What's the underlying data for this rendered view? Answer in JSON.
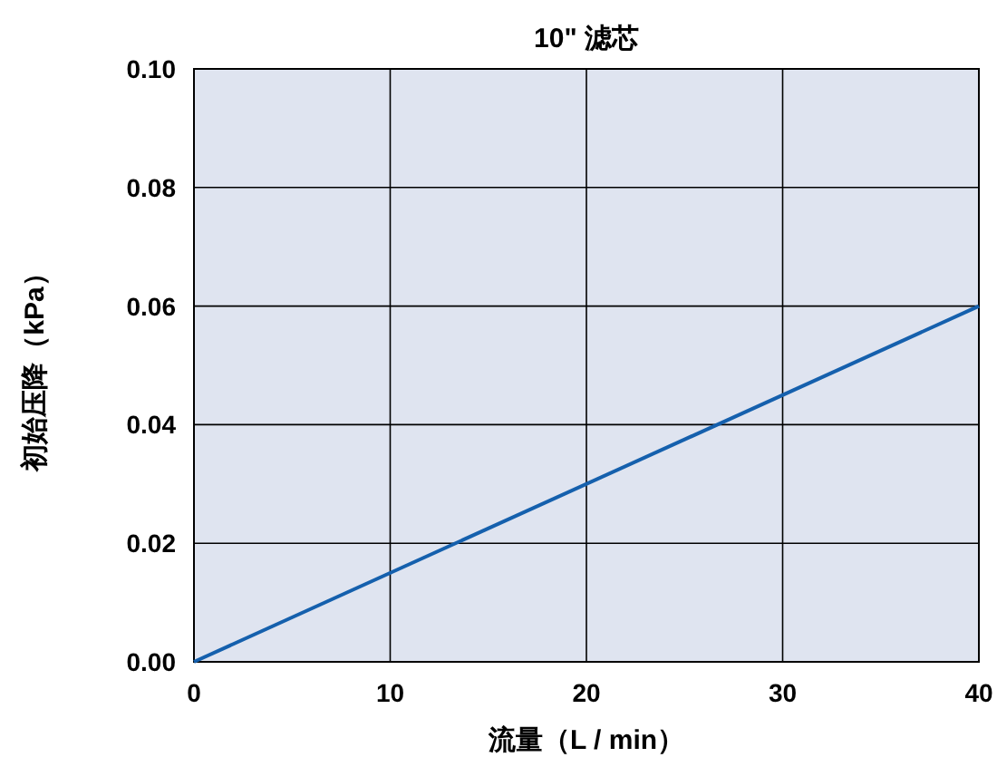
{
  "chart_data": {
    "type": "line",
    "title": "10\" 滤芯",
    "xlabel": "流量（L / min）",
    "ylabel": "初始压降（kPa）",
    "x": [
      0,
      40
    ],
    "series": [
      {
        "color": "#1560ad",
        "values": [
          0,
          0.06
        ]
      }
    ],
    "xlim": [
      0,
      40
    ],
    "xticks": [
      0,
      10,
      20,
      30,
      40
    ],
    "ylim": [
      0,
      0.1
    ],
    "yticks": [
      {
        "value": 0,
        "label": "0.00"
      },
      {
        "value": 0.02,
        "label": "0.02"
      },
      {
        "value": 0.04,
        "label": "0.04"
      },
      {
        "value": 0.06,
        "label": "0.06"
      },
      {
        "value": 0.08,
        "label": "0.08"
      },
      {
        "value": 0.1,
        "label": "0.10"
      }
    ],
    "grid": true,
    "marker": "none",
    "line_style": "solid"
  }
}
